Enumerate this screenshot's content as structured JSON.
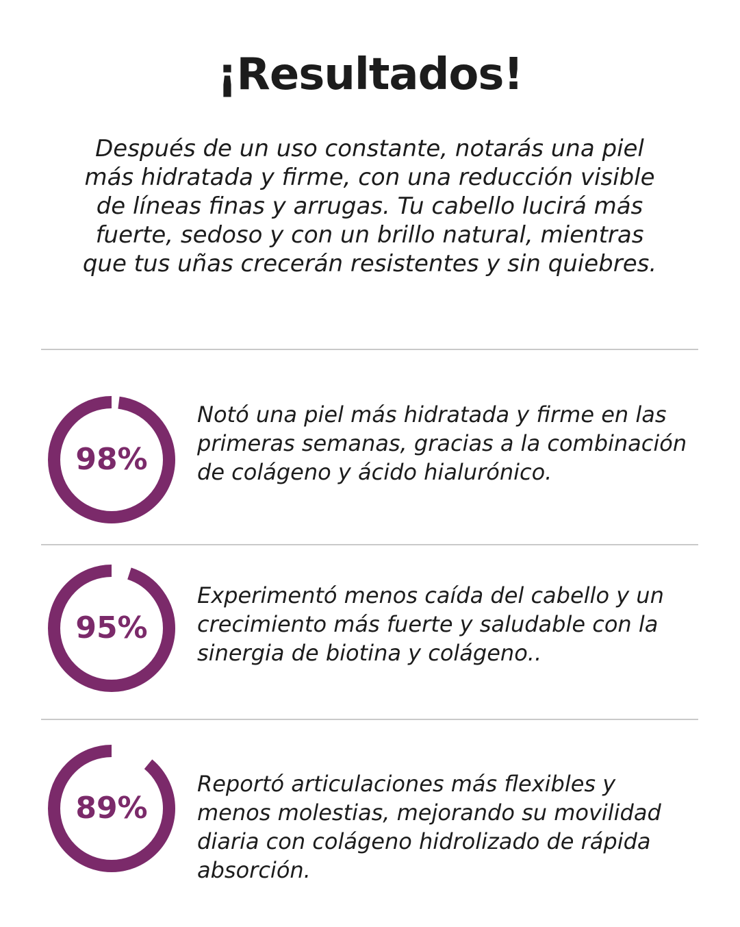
{
  "header": {
    "title": "¡Resultados!",
    "intro": "Después de un uso constante, notarás una piel más hidratada y firme, con una reducción visible de líneas finas y arrugas. Tu cabello lucirá más fuerte, sedoso y con un brillo natural, mientras que tus uñas crecerán resistentes y sin quiebres."
  },
  "colors": {
    "accent": "#7b2a6a",
    "text": "#1c1c1c",
    "divider": "#c9c9c9"
  },
  "stats": [
    {
      "label": "98%",
      "value": 98,
      "text": "Notó una piel más hidratada y firme en las primeras semanas, gracias a la combinación de colágeno y ácido hialurónico."
    },
    {
      "label": "95%",
      "value": 95,
      "text": "Experimentó menos caída del cabello y un crecimiento más fuerte y saludable con la sinergia de biotina y colágeno.."
    },
    {
      "label": "89%",
      "value": 89,
      "text": "Reportó articulaciones más flexibles y menos molestias, mejorando su movilidad diaria con colágeno hidrolizado de rápida absorción."
    }
  ]
}
